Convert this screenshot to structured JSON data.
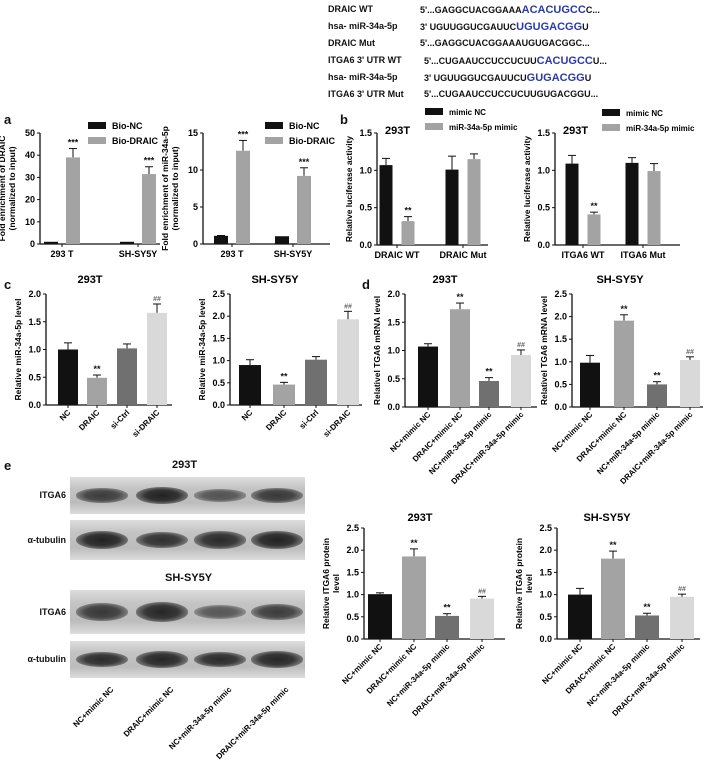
{
  "sequences": [
    {
      "label": "DRAIC  WT",
      "seq": [
        {
          "t": "5'...GAGGCUACGGAAA"
        },
        {
          "t": "ACACUGCC",
          "hl": true
        },
        {
          "t": "C..."
        }
      ]
    },
    {
      "label": "hsa- miR-34a-5p",
      "seq": [
        {
          "t": "3'    UGUUGGUCGAUUC"
        },
        {
          "t": "UGUGACGG",
          "hl": true
        },
        {
          "t": "U"
        }
      ]
    },
    {
      "label": "DRAIC  Mut",
      "seq": [
        {
          "t": "5'...GAGGCUACGGAAAUGUGACGGC..."
        }
      ]
    },
    {
      "label": "ITGA6 3' UTR WT",
      "seq": [
        {
          "t": "5'...CUGAAUCCUCCUCUU"
        },
        {
          "t": "CACUGCC",
          "hl": true
        },
        {
          "t": "U..."
        }
      ]
    },
    {
      "label": "hsa- miR-34a-5p",
      "seq": [
        {
          "t": "3'    UGUUGGUCGAUUCU"
        },
        {
          "t": "GUGACGG",
          "hl": true
        },
        {
          "t": "U"
        }
      ]
    },
    {
      "label": "ITGA6 3' UTR Mut",
      "seq": [
        {
          "t": "5'...CUGAAUCCUCCUCUUGUGACGGU..."
        }
      ]
    }
  ],
  "panels": {
    "a": "a",
    "b": "b",
    "c": "c",
    "d": "d",
    "e": "e"
  },
  "blot": {
    "title1": "293T",
    "title2": "SH-SY5Y",
    "row1": "ITGA6",
    "row2": "α-tubulin",
    "lanes": [
      "NC+mimic NC",
      "DRAIC+mimic NC",
      "NC+miR-34a-5p mimic",
      "DRAIC+miR-34a-5p mimic"
    ],
    "itga6_293t": [
      0.7,
      1.0,
      0.45,
      0.75
    ],
    "itga6_sh": [
      0.75,
      0.95,
      0.4,
      0.7
    ]
  },
  "colors": {
    "black": "#111111",
    "gray": "#a3a3a3",
    "darkgray": "#707070",
    "lightgray": "#d9d9d9"
  },
  "chart_data": [
    {
      "id": "a1",
      "type": "bar",
      "title": "",
      "ylabel": [
        "Fold enrichment of DRAIC",
        "(normalized to input)"
      ],
      "ylim": [
        0,
        50
      ],
      "yticks": [
        0,
        10,
        20,
        30,
        40,
        50
      ],
      "categories": [
        "293 T",
        "SH-SY5Y"
      ],
      "series": [
        {
          "name": "Bio-NC",
          "values": [
            1,
            1
          ],
          "err": [
            0,
            0
          ],
          "color": "#111111",
          "sig": [
            "",
            ""
          ]
        },
        {
          "name": "Bio-DRAIC",
          "values": [
            39,
            31.5
          ],
          "err": [
            4,
            3.3
          ],
          "color": "#a3a3a3",
          "sig": [
            "***",
            "***"
          ]
        }
      ],
      "legend": "top-right"
    },
    {
      "id": "a2",
      "type": "bar",
      "title": "",
      "ylabel": [
        "Fold enrichment of miR-34a-5p",
        "(normalized to input)"
      ],
      "ylim": [
        0,
        15
      ],
      "yticks": [
        0,
        5,
        10,
        15
      ],
      "categories": [
        "293 T",
        "SH-SY5Y"
      ],
      "series": [
        {
          "name": "Bio-NC",
          "values": [
            1.1,
            1.05
          ],
          "err": [
            0.05,
            0
          ],
          "color": "#111111",
          "sig": [
            "",
            ""
          ]
        },
        {
          "name": "Bio-DRAIC",
          "values": [
            12.6,
            9.2
          ],
          "err": [
            1.4,
            1.1
          ],
          "color": "#a3a3a3",
          "sig": [
            "***",
            "***"
          ]
        }
      ],
      "legend": "top-right"
    },
    {
      "id": "b1",
      "type": "bar",
      "title": "293T",
      "ylabel": [
        "Relative luciferase activity"
      ],
      "ylim": [
        0,
        1.5
      ],
      "yticks": [
        "0.0",
        "0.5",
        "1.0",
        "1.5"
      ],
      "categories": [
        "DRAIC WT",
        "DRAIC Mut"
      ],
      "series": [
        {
          "name": "mimic NC",
          "values": [
            1.07,
            1.01
          ],
          "err": [
            0.09,
            0.18
          ],
          "color": "#111111",
          "sig": [
            "",
            ""
          ]
        },
        {
          "name": "miR-34a-5p mimic",
          "values": [
            0.32,
            1.15
          ],
          "err": [
            0.06,
            0.07
          ],
          "color": "#a3a3a3",
          "sig": [
            "**",
            ""
          ]
        }
      ],
      "legend": "top"
    },
    {
      "id": "b2",
      "type": "bar",
      "title": "293T",
      "ylabel": [
        "Relative luciferase activity"
      ],
      "ylim": [
        0,
        1.5
      ],
      "yticks": [
        "0.0",
        "0.5",
        "1.0",
        "1.5"
      ],
      "categories": [
        "ITGA6 WT",
        "ITGA6 Mut"
      ],
      "series": [
        {
          "name": "mimic NC",
          "values": [
            1.09,
            1.1
          ],
          "err": [
            0.11,
            0.07
          ],
          "color": "#111111",
          "sig": [
            "",
            ""
          ]
        },
        {
          "name": "miR-34a-5p mimic",
          "values": [
            0.41,
            0.99
          ],
          "err": [
            0.03,
            0.1
          ],
          "color": "#a3a3a3",
          "sig": [
            "**",
            ""
          ]
        }
      ],
      "legend": "top-right"
    },
    {
      "id": "c1",
      "type": "bar",
      "title": "293T",
      "ylabel": [
        "Relative miR-34a-5p level"
      ],
      "ylim": [
        0,
        2
      ],
      "yticks": [
        "0.0",
        "0.5",
        "1.0",
        "1.5",
        "2.0"
      ],
      "categories": [
        "NC",
        "DRAIC",
        "si-Ctrl",
        "si-DRAIC"
      ],
      "values": [
        1.0,
        0.49,
        1.02,
        1.66
      ],
      "err": [
        0.12,
        0.05,
        0.08,
        0.16
      ],
      "sig": [
        "",
        "**",
        "",
        "##"
      ],
      "colors": [
        "#111111",
        "#a3a3a3",
        "#707070",
        "#d9d9d9"
      ]
    },
    {
      "id": "c2",
      "type": "bar",
      "title": "SH-SY5Y",
      "ylabel": [
        "Relative miR-34a-5p level"
      ],
      "ylim": [
        0,
        2.5
      ],
      "yticks": [
        "0.0",
        "0.5",
        "1.0",
        "1.5",
        "2.0",
        "2.5"
      ],
      "categories": [
        "NC",
        "DRAIC",
        "si-Ctrl",
        "si-DRAIC"
      ],
      "values": [
        0.9,
        0.46,
        1.02,
        1.93
      ],
      "err": [
        0.12,
        0.05,
        0.07,
        0.18
      ],
      "sig": [
        "",
        "**",
        "",
        "##"
      ],
      "colors": [
        "#111111",
        "#a3a3a3",
        "#707070",
        "#d9d9d9"
      ]
    },
    {
      "id": "d1",
      "type": "bar",
      "title": "293T",
      "ylabel": [
        "Relativel TGA6 mRNA level"
      ],
      "ylim": [
        0,
        2
      ],
      "yticks": [
        "0.0",
        "0.5",
        "1.0",
        "1.5",
        "2.0"
      ],
      "categories": [
        "NC+mimic NC",
        "DRAIC+mimic NC",
        "NC+miR-34a-5p mimic",
        "DRAIC+miR-34a-5p mimic"
      ],
      "values": [
        1.07,
        1.73,
        0.46,
        0.92
      ],
      "err": [
        0.05,
        0.11,
        0.06,
        0.09
      ],
      "sig": [
        "",
        "**",
        "**",
        "##"
      ],
      "colors": [
        "#111111",
        "#a3a3a3",
        "#707070",
        "#d9d9d9"
      ]
    },
    {
      "id": "d2",
      "type": "bar",
      "title": "SH-SY5Y",
      "ylabel": [
        "Relativel TGA6 mRNA level"
      ],
      "ylim": [
        0,
        2.5
      ],
      "yticks": [
        "0.0",
        "0.5",
        "1.0",
        "1.5",
        "2.0",
        "2.5"
      ],
      "categories": [
        "NC+mimic NC",
        "DRAIC+mimic NC",
        "NC+miR-34a-5p mimic",
        "DRAIC+miR-34a-5p mimic"
      ],
      "values": [
        0.98,
        1.91,
        0.5,
        1.04
      ],
      "err": [
        0.16,
        0.13,
        0.06,
        0.07
      ],
      "sig": [
        "",
        "**",
        "**",
        "##"
      ],
      "colors": [
        "#111111",
        "#a3a3a3",
        "#707070",
        "#d9d9d9"
      ]
    },
    {
      "id": "e1",
      "type": "bar",
      "title": "293T",
      "ylabel": [
        "Relative ITGA6 protein",
        "level"
      ],
      "ylim": [
        0,
        2.5
      ],
      "yticks": [
        "0.0",
        "0.5",
        "1.0",
        "1.5",
        "2.0",
        "2.5"
      ],
      "categories": [
        "NC+mimic NC",
        "DRAIC+mimic NC",
        "NC+miR-34a-5p mimic",
        "DRAIC+miR-34a-5p mimic"
      ],
      "values": [
        1.01,
        1.86,
        0.52,
        0.91
      ],
      "err": [
        0.03,
        0.17,
        0.05,
        0.05
      ],
      "sig": [
        "",
        "**",
        "**",
        "##"
      ],
      "colors": [
        "#111111",
        "#a3a3a3",
        "#707070",
        "#d9d9d9"
      ]
    },
    {
      "id": "e2",
      "type": "bar",
      "title": "SH-SY5Y",
      "ylabel": [
        "Relative ITGA6 protein",
        "level"
      ],
      "ylim": [
        0,
        2.5
      ],
      "yticks": [
        "0.0",
        "0.5",
        "1.0",
        "1.5",
        "2.0",
        "2.5"
      ],
      "categories": [
        "NC+mimic NC",
        "DRAIC+mimic NC",
        "NC+miR-34a-5p mimic",
        "DRAIC+miR-34a-5p mimic"
      ],
      "values": [
        1.0,
        1.81,
        0.53,
        0.95
      ],
      "err": [
        0.14,
        0.17,
        0.05,
        0.06
      ],
      "sig": [
        "",
        "**",
        "**",
        "##"
      ],
      "colors": [
        "#111111",
        "#a3a3a3",
        "#707070",
        "#d9d9d9"
      ]
    }
  ]
}
